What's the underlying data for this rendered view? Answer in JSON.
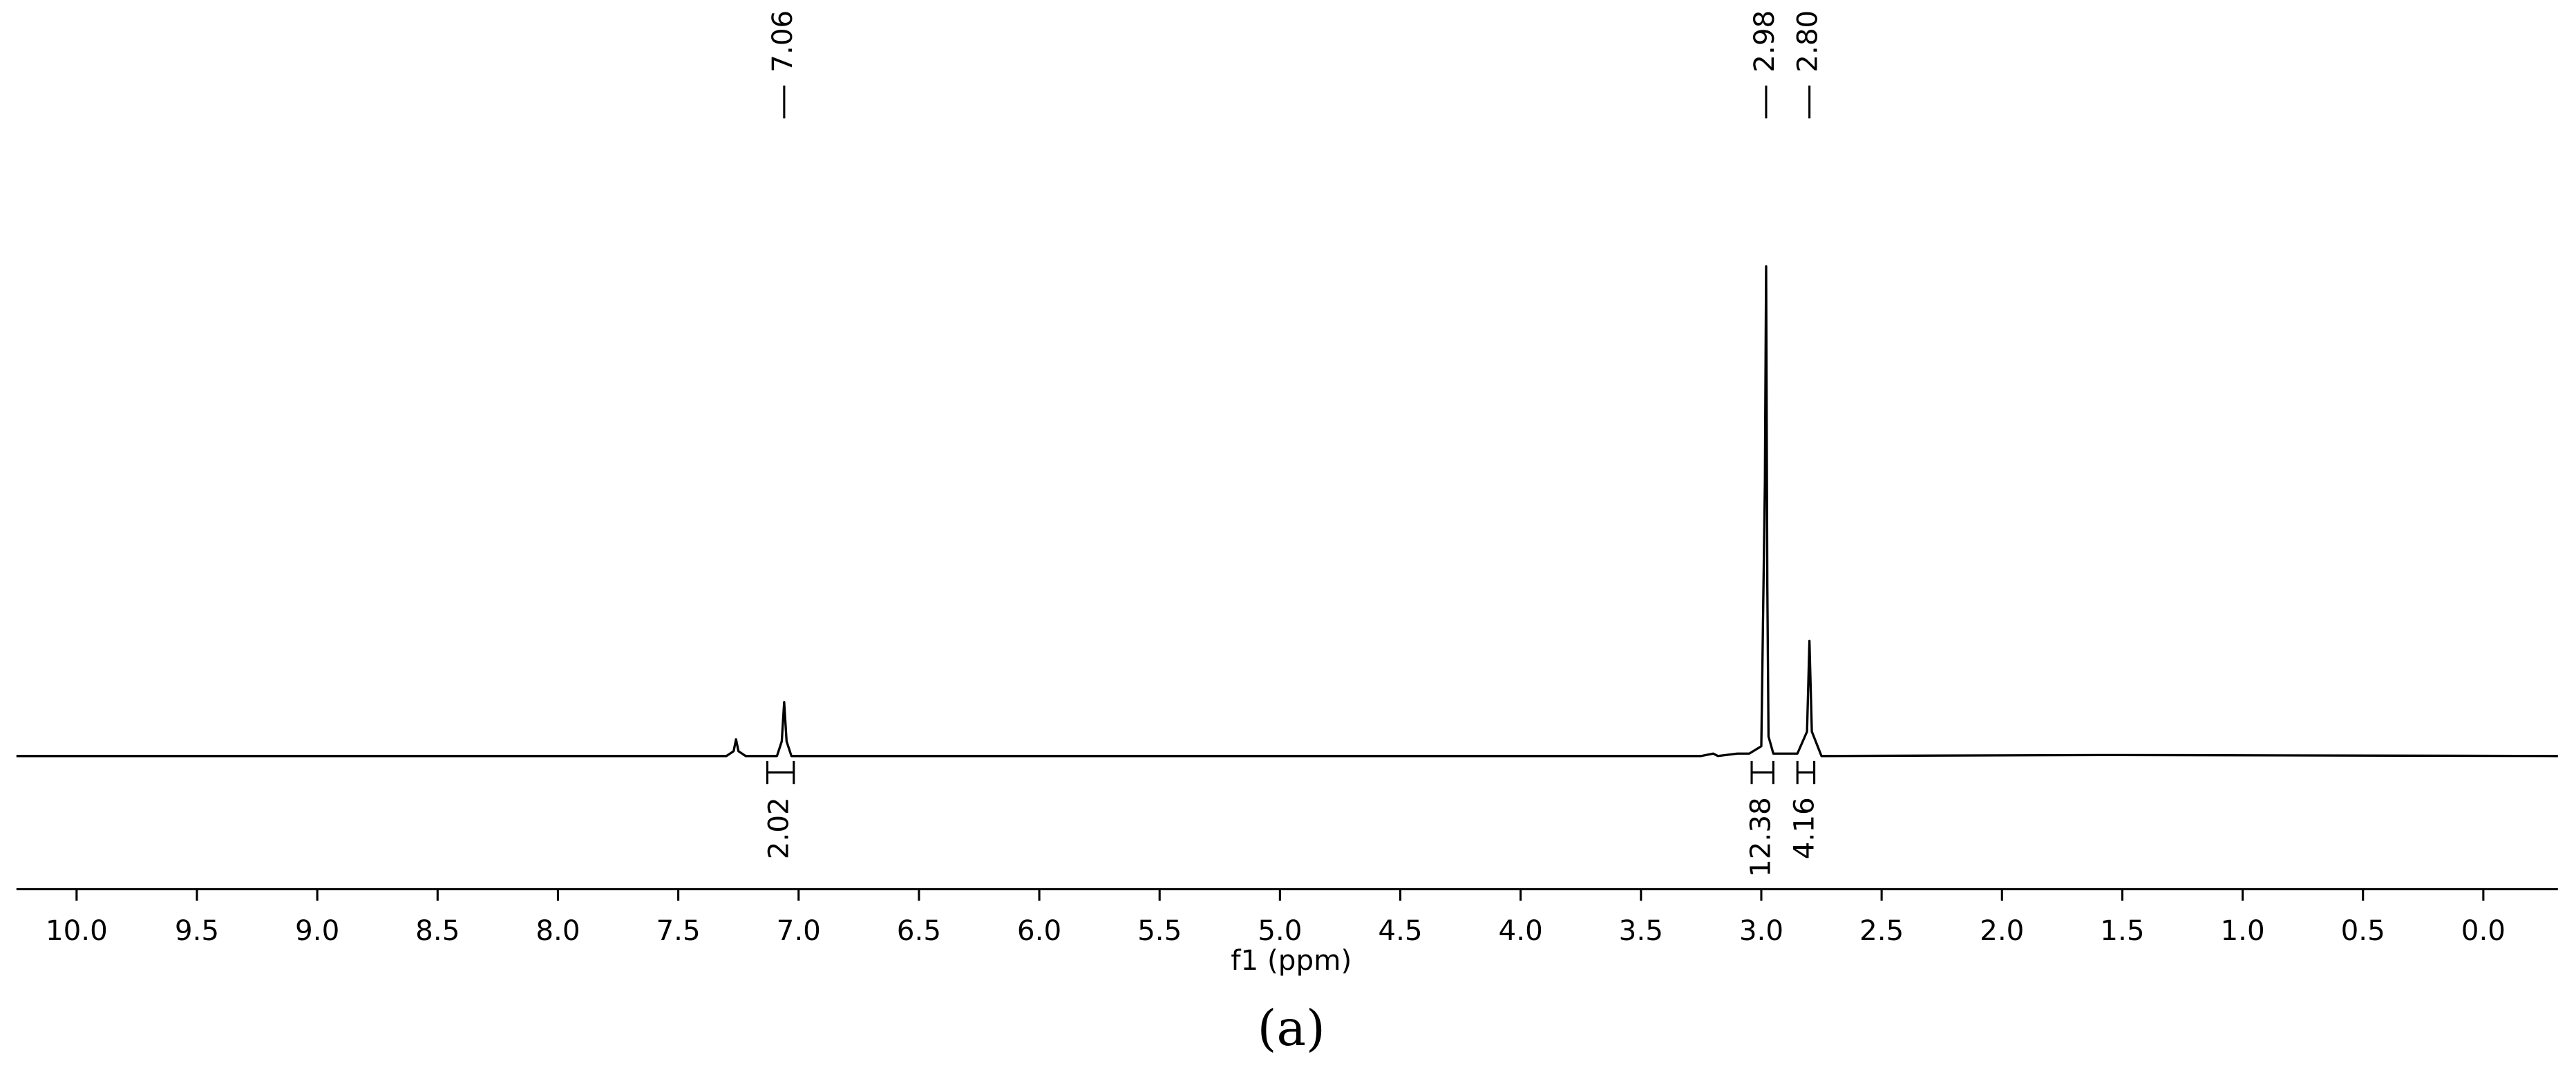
{
  "chart_data": {
    "type": "line",
    "xlabel": "f1 (ppm)",
    "caption": "(a)",
    "color": "#000000",
    "x": [
      10.25,
      7.3,
      7.27,
      7.26,
      7.25,
      7.22,
      7.09,
      7.07,
      7.06,
      7.05,
      7.03,
      3.25,
      3.2,
      3.18,
      3.1,
      3.05,
      3.0,
      2.985,
      2.98,
      2.975,
      2.97,
      2.95,
      2.85,
      2.81,
      2.8,
      2.79,
      2.75,
      1.6,
      1.5,
      -0.31
    ],
    "values": [
      0,
      0,
      1,
      3.4,
      1,
      0,
      0,
      3,
      11,
      3,
      0,
      0,
      0.5,
      0,
      0.5,
      0.5,
      2,
      56,
      100,
      35,
      4,
      0.5,
      0.5,
      5,
      23.5,
      5,
      0,
      0.2,
      0.2,
      0
    ],
    "xlim": [
      10.25,
      -0.31
    ],
    "ylim": [
      0,
      100
    ],
    "xticks": [
      {
        "value": 10,
        "label": "10.0"
      },
      9.5,
      {
        "value": 9,
        "label": "9.0"
      },
      8.5,
      {
        "value": 8,
        "label": "8.0"
      },
      7.5,
      {
        "value": 7,
        "label": "7.0"
      },
      6.5,
      {
        "value": 6,
        "label": "6.0"
      },
      5.5,
      {
        "value": 5,
        "label": "5.0"
      },
      4.5,
      {
        "value": 4,
        "label": "4.0"
      },
      3.5,
      {
        "value": 3,
        "label": "3.0"
      },
      2.5,
      {
        "value": 2,
        "label": "2.0"
      },
      1.5,
      {
        "value": 1,
        "label": "1.0"
      },
      0.5,
      {
        "value": 0,
        "label": "0.0"
      }
    ],
    "peaks": [
      7.06,
      2.98,
      {
        "value": 2.8,
        "label": "2.80"
      }
    ],
    "integrals": [
      {
        "from": 7.13,
        "to": 7.02,
        "value": 2.02
      },
      {
        "from": 3.04,
        "to": 2.95,
        "value": 12.38
      },
      {
        "from": 2.85,
        "to": 2.78,
        "value": 4.16
      }
    ]
  }
}
